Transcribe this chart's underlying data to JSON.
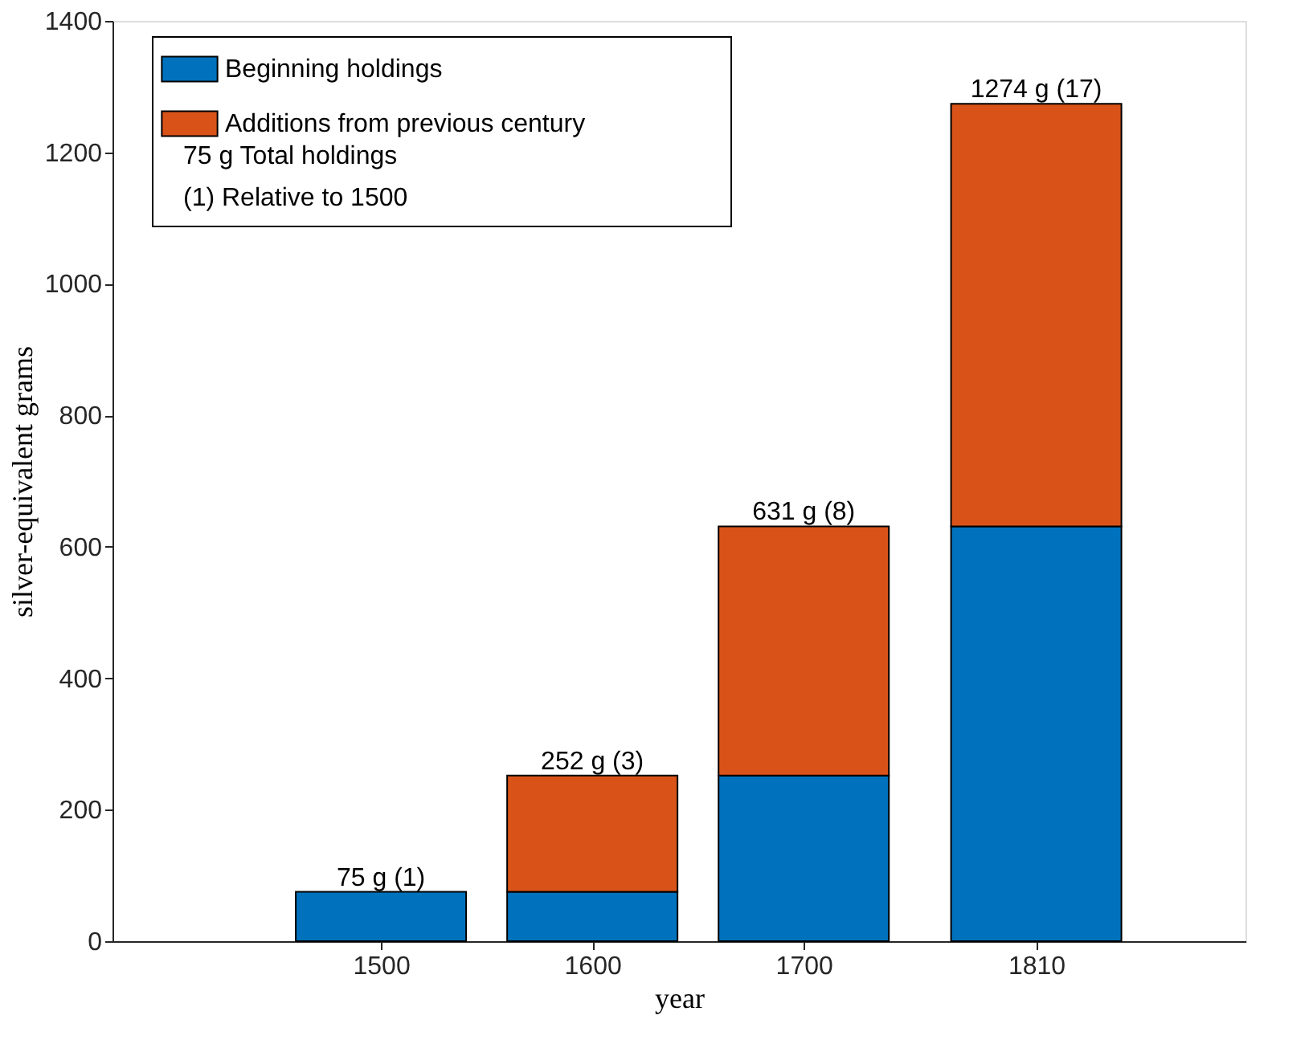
{
  "chart_data": {
    "type": "bar",
    "stacked": true,
    "xlabel": "year",
    "ylabel": "silver-equivalent grams",
    "x": [
      1500,
      1600,
      1700,
      1810
    ],
    "series": [
      {
        "name": "Beginning holdings",
        "color": "#0072bd",
        "values": [
          75,
          75,
          252,
          631
        ]
      },
      {
        "name": "Additions from previous century",
        "color": "#d95319",
        "values": [
          0,
          177,
          379,
          643
        ]
      }
    ],
    "totals": [
      "75 g (1)",
      "252 g (3)",
      "631 g (8)",
      "1274 g (17)"
    ],
    "annotations": [
      "75 g    Total holdings",
      "(1)      Relative to 1500"
    ],
    "xlim": [
      1373,
      1909
    ],
    "xticks": [
      1500,
      1600,
      1700,
      1810
    ],
    "ylim": [
      0,
      1400
    ],
    "yticks": [
      0,
      200,
      400,
      600,
      800,
      1000,
      1200,
      1400
    ],
    "grid": false,
    "legend": "top left"
  }
}
